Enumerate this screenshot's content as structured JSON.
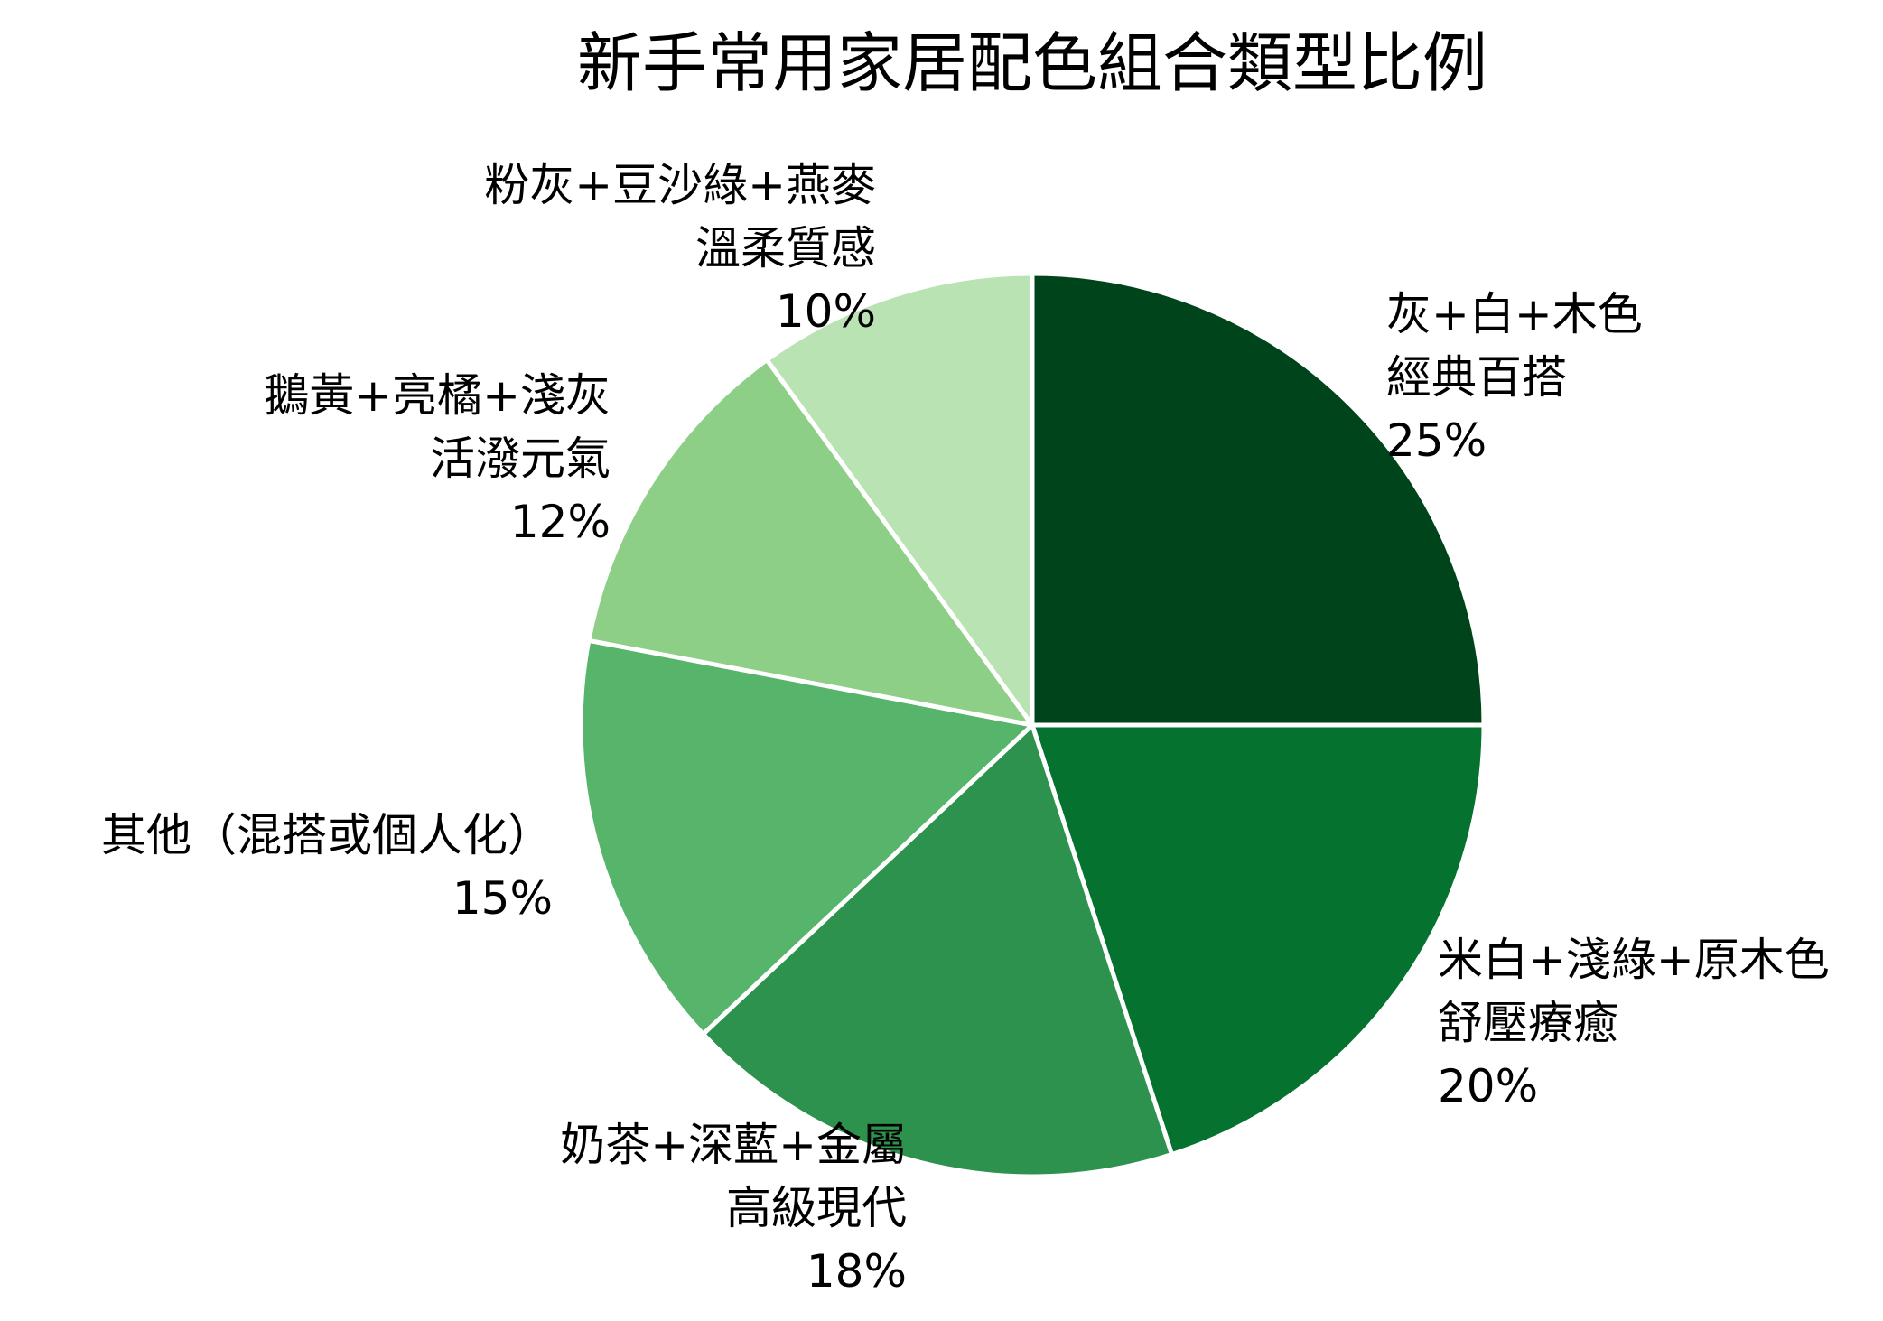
{
  "chart_data": {
    "type": "pie",
    "title": "新手常用家居配色組合類型比例",
    "start_angle": "12-o'clock",
    "direction": "clockwise",
    "slices": [
      {
        "lines": [
          "灰+白+木色",
          "經典百搭"
        ],
        "pct_label": "25%",
        "value": 25,
        "color": "#00441b"
      },
      {
        "lines": [
          "米白+淺綠+原木色",
          "舒壓療癒"
        ],
        "pct_label": "20%",
        "value": 20,
        "color": "#06722f"
      },
      {
        "lines": [
          "奶茶+深藍+金屬",
          "高級現代"
        ],
        "pct_label": "18%",
        "value": 18,
        "color": "#2d924d"
      },
      {
        "lines": [
          "其他（混搭或個人化）"
        ],
        "pct_label": "15%",
        "value": 15,
        "color": "#56b56a"
      },
      {
        "lines": [
          "鵝黃+亮橘+淺灰",
          "活潑元氣"
        ],
        "pct_label": "12%",
        "value": 12,
        "color": "#8ecf88"
      },
      {
        "lines": [
          "粉灰+豆沙綠+燕麥",
          "溫柔質感"
        ],
        "pct_label": "10%",
        "value": 10,
        "color": "#b9e3b3"
      }
    ]
  }
}
